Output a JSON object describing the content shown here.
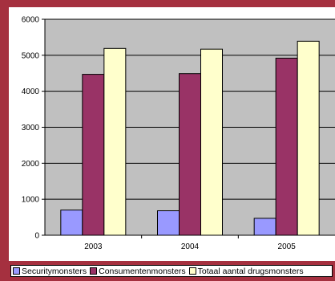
{
  "chart_data": {
    "type": "bar",
    "categories": [
      "2003",
      "2004",
      "2005"
    ],
    "series": [
      {
        "name": "Securitymonsters",
        "values": [
          700,
          680,
          470
        ],
        "color": "#9999ff"
      },
      {
        "name": "Consumentenmonsters",
        "values": [
          4470,
          4490,
          4920
        ],
        "color": "#993366"
      },
      {
        "name": "Totaal aantal drugsmonsters",
        "values": [
          5190,
          5170,
          5390
        ],
        "color": "#ffffcc"
      }
    ],
    "ylim": [
      0,
      6000
    ],
    "yticks": [
      0,
      1000,
      2000,
      3000,
      4000,
      5000,
      6000
    ],
    "grid": true,
    "legend_position": "bottom",
    "title": "",
    "xlabel": "",
    "ylabel": ""
  }
}
